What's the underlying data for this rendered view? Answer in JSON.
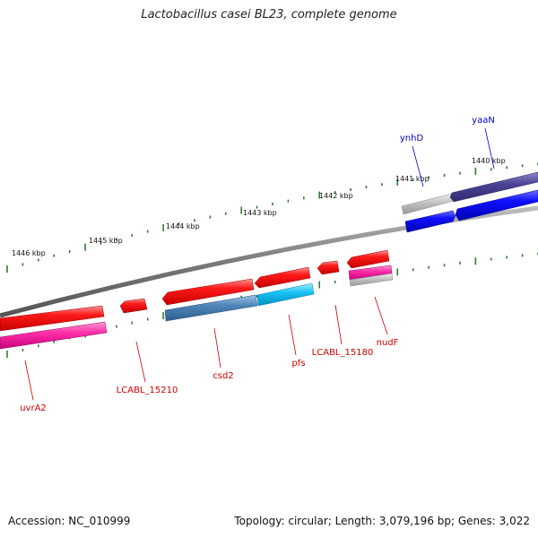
{
  "title": "Lactobacillus casei BL23, complete genome",
  "accession": "Accession: NC_010999",
  "topology": "Topology: circular; Length: 3,079,196 bp; Genes: 3,022",
  "colors": {
    "backbone": "#7f7f7f",
    "tick": "#2e7d32",
    "forward_label": "#0000cc",
    "reverse_label": "#cc0000"
  },
  "ticks": [
    {
      "label": "1440 kbp"
    },
    {
      "label": "1441 kbp"
    },
    {
      "label": "1442 kbp"
    },
    {
      "label": "1443 kbp"
    },
    {
      "label": "1444 kbp"
    },
    {
      "label": "1445 kbp"
    },
    {
      "label": "1446 kbp"
    }
  ],
  "gene_labels": [
    {
      "name": "yaaN",
      "strand": "forward"
    },
    {
      "name": "ynhD",
      "strand": "forward"
    },
    {
      "name": "nudF",
      "strand": "reverse"
    },
    {
      "name": "LCABL_15180",
      "strand": "reverse"
    },
    {
      "name": "pfs",
      "strand": "reverse"
    },
    {
      "name": "csd2",
      "strand": "reverse"
    },
    {
      "name": "LCABL_15210",
      "strand": "reverse"
    },
    {
      "name": "uvrA2",
      "strand": "reverse"
    }
  ]
}
